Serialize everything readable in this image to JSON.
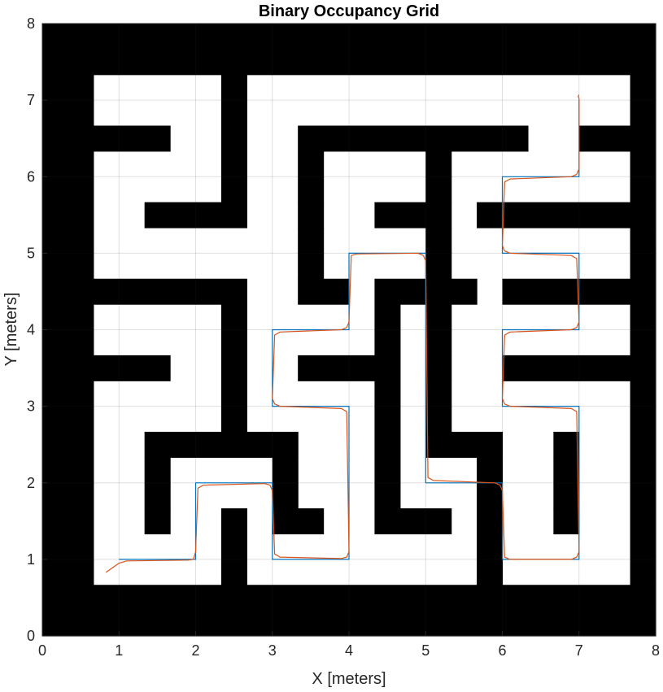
{
  "chart_data": {
    "type": "occupancy-grid",
    "title": "Binary Occupancy Grid",
    "xlabel": "X [meters]",
    "ylabel": "Y [meters]",
    "xlim": [
      0,
      8
    ],
    "ylim": [
      0,
      8
    ],
    "xticks": [
      "0",
      "1",
      "2",
      "3",
      "4",
      "5",
      "6",
      "7",
      "8"
    ],
    "yticks": [
      "0",
      "1",
      "2",
      "3",
      "4",
      "5",
      "6",
      "7",
      "8"
    ],
    "grid": true,
    "cell_size": 0.3333,
    "grid_rows_top_to_bottom": [
      "########################",
      "########################",
      "##.....#...............#",
      "##.....#...............#",
      "#####..#..#########..###",
      "##.....#..#....#.......#",
      "##.....#..#....#.......#",
      "##..####..#..###.#######",
      "##........#....#.......#",
      "##........#....#.......#",
      "########..##.####.######",
      "##.....#.....#.#.......#",
      "##.....#.....#.#.......#",
      "#####..#..####.#..######",
      "##.....#.....#.#.......#",
      "##.....#.....#.#.......#",
      "##..######...#.###..#..#",
      "##..#....#...#...#..#..#",
      "##..#....#...#...#..#..#",
      "##..#..#.##..###.#..#..#",
      "##.....#.........#.....#",
      "##.....#.........#.....#",
      "########################",
      "########################"
    ],
    "free_color": "#ffffff",
    "occupied_color": "#000000",
    "series": [
      {
        "color": "#0072bd",
        "x": [
          1.0,
          2.0,
          2.0,
          3.0,
          3.0,
          4.0,
          4.0,
          3.0,
          3.0,
          4.0,
          4.0,
          5.0,
          5.0,
          6.0,
          6.0,
          7.0,
          7.0,
          6.0,
          6.0,
          7.0,
          7.0,
          6.0,
          6.0,
          7.0,
          7.0
        ],
        "y": [
          1.0,
          1.0,
          2.0,
          2.0,
          1.0,
          1.0,
          3.0,
          3.0,
          4.0,
          4.0,
          5.0,
          5.0,
          2.0,
          2.0,
          1.0,
          1.0,
          3.0,
          3.0,
          4.0,
          4.0,
          5.0,
          5.0,
          6.0,
          6.0,
          7.0
        ]
      },
      {
        "color": "#d95319",
        "x": [
          0.83,
          0.9,
          1.0,
          1.1,
          1.9,
          1.97,
          2.0,
          2.03,
          2.1,
          2.9,
          2.97,
          3.0,
          3.03,
          3.1,
          3.9,
          3.97,
          4.0,
          3.97,
          3.9,
          3.1,
          3.03,
          3.0,
          3.03,
          3.1,
          3.9,
          3.97,
          4.0,
          4.03,
          4.1,
          4.9,
          4.97,
          5.0,
          5.03,
          5.1,
          5.9,
          5.97,
          6.0,
          6.03,
          6.1,
          6.9,
          6.97,
          7.0,
          6.97,
          6.9,
          6.1,
          6.03,
          6.0,
          6.03,
          6.1,
          6.9,
          6.97,
          7.0,
          6.97,
          6.9,
          6.1,
          6.03,
          6.0,
          6.03,
          6.1,
          6.9,
          6.97,
          7.0,
          7.0,
          6.99,
          7.0
        ],
        "y": [
          0.83,
          0.88,
          0.95,
          0.98,
          0.99,
          1.0,
          1.1,
          1.93,
          1.97,
          1.99,
          1.97,
          1.9,
          1.07,
          1.03,
          1.01,
          1.03,
          1.1,
          2.93,
          2.97,
          3.0,
          3.03,
          3.1,
          3.93,
          3.97,
          4.0,
          4.03,
          4.1,
          4.97,
          4.99,
          5.0,
          4.97,
          4.9,
          2.07,
          2.03,
          2.0,
          1.97,
          1.9,
          1.03,
          1.0,
          1.0,
          1.03,
          1.1,
          2.93,
          2.97,
          3.0,
          3.03,
          3.1,
          3.93,
          3.97,
          4.0,
          4.03,
          4.1,
          4.93,
          4.97,
          5.0,
          5.03,
          5.1,
          5.93,
          5.97,
          6.0,
          6.03,
          6.1,
          7.02,
          7.05,
          7.07
        ]
      }
    ]
  }
}
